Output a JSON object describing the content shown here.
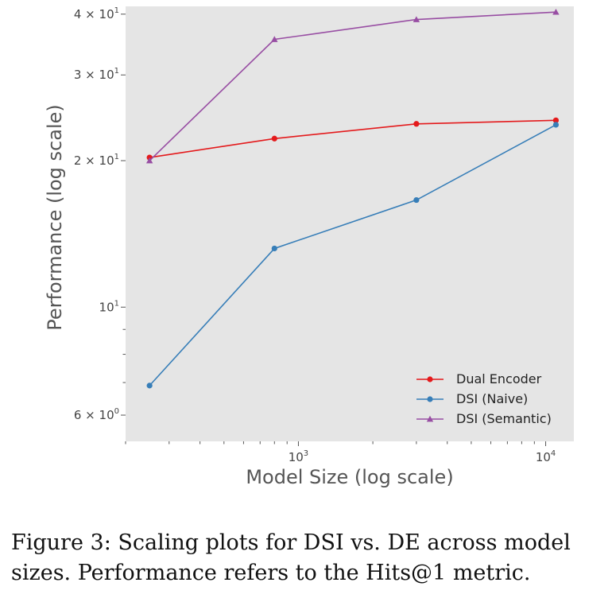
{
  "chart_data": {
    "type": "line",
    "xlabel": "Model Size (log scale)",
    "ylabel": "Performance (log scale)",
    "x_scale": "log",
    "y_scale": "log",
    "xlim": [
      200,
      13000
    ],
    "ylim": [
      5.3,
      41.5
    ],
    "x_ticks": [
      {
        "value": 1000,
        "base": "10",
        "exp": "3"
      },
      {
        "value": 10000,
        "base": "10",
        "exp": "4"
      }
    ],
    "y_ticks": [
      {
        "value": 6,
        "mant": "6 × 10",
        "exp": "0"
      },
      {
        "value": 10,
        "mant": "10",
        "exp": "1"
      },
      {
        "value": 20,
        "mant": "2 × 10",
        "exp": "1"
      },
      {
        "value": 30,
        "mant": "3 × 10",
        "exp": "1"
      },
      {
        "value": 40,
        "mant": "4 × 10",
        "exp": "1"
      }
    ],
    "grid": false,
    "background": "#e5e5e5",
    "legend_position": "lower-right",
    "x": [
      250,
      800,
      3000,
      11000
    ],
    "series": [
      {
        "name": "Dual Encoder",
        "color": "#e41a1c",
        "marker": "circle",
        "values": [
          20.3,
          22.2,
          23.8,
          24.2
        ]
      },
      {
        "name": "DSI (Naive)",
        "color": "#377eb8",
        "marker": "circle",
        "values": [
          6.9,
          13.2,
          16.6,
          23.7
        ]
      },
      {
        "name": "DSI (Semantic)",
        "color": "#984ea3",
        "marker": "triangle",
        "values": [
          20.0,
          35.5,
          39.0,
          40.4
        ]
      }
    ]
  },
  "caption": "Figure 3: Scaling plots for DSI vs. DE across model sizes. Performance refers to the Hits@1 metric."
}
